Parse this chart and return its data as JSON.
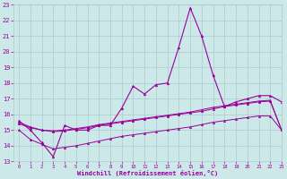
{
  "x": [
    0,
    1,
    2,
    3,
    4,
    5,
    6,
    7,
    8,
    9,
    10,
    11,
    12,
    13,
    14,
    15,
    16,
    17,
    18,
    19,
    20,
    21,
    22,
    23
  ],
  "main_line": [
    15.6,
    15.0,
    14.2,
    13.3,
    15.3,
    15.0,
    15.0,
    15.3,
    15.3,
    16.4,
    17.8,
    17.3,
    17.9,
    18.0,
    20.3,
    22.8,
    21.0,
    18.5,
    16.5,
    16.8,
    17.0,
    17.2,
    17.2,
    16.8
  ],
  "line2": [
    15.5,
    15.2,
    15.0,
    14.9,
    14.95,
    15.05,
    15.15,
    15.3,
    15.4,
    15.5,
    15.6,
    15.7,
    15.8,
    15.9,
    16.0,
    16.1,
    16.2,
    16.35,
    16.5,
    16.6,
    16.7,
    16.8,
    16.85,
    15.0
  ],
  "line3": [
    15.4,
    15.15,
    15.0,
    14.95,
    15.0,
    15.1,
    15.2,
    15.35,
    15.45,
    15.55,
    15.65,
    15.75,
    15.85,
    15.95,
    16.05,
    16.15,
    16.3,
    16.45,
    16.55,
    16.65,
    16.75,
    16.85,
    16.9,
    15.0
  ],
  "line4": [
    15.0,
    14.4,
    14.1,
    13.8,
    13.9,
    14.0,
    14.15,
    14.3,
    14.45,
    14.6,
    14.7,
    14.8,
    14.9,
    15.0,
    15.1,
    15.2,
    15.35,
    15.5,
    15.6,
    15.7,
    15.8,
    15.9,
    15.9,
    15.0
  ],
  "line_color": "#990099",
  "bg_color": "#cce8e8",
  "grid_color": "#aacccc",
  "xlabel": "Windchill (Refroidissement éolien,°C)",
  "ylim": [
    13,
    23
  ],
  "xlim": [
    -0.5,
    23
  ],
  "yticks": [
    13,
    14,
    15,
    16,
    17,
    18,
    19,
    20,
    21,
    22,
    23
  ],
  "xticks": [
    0,
    1,
    2,
    3,
    4,
    5,
    6,
    7,
    8,
    9,
    10,
    11,
    12,
    13,
    14,
    15,
    16,
    17,
    18,
    19,
    20,
    21,
    22,
    23
  ]
}
